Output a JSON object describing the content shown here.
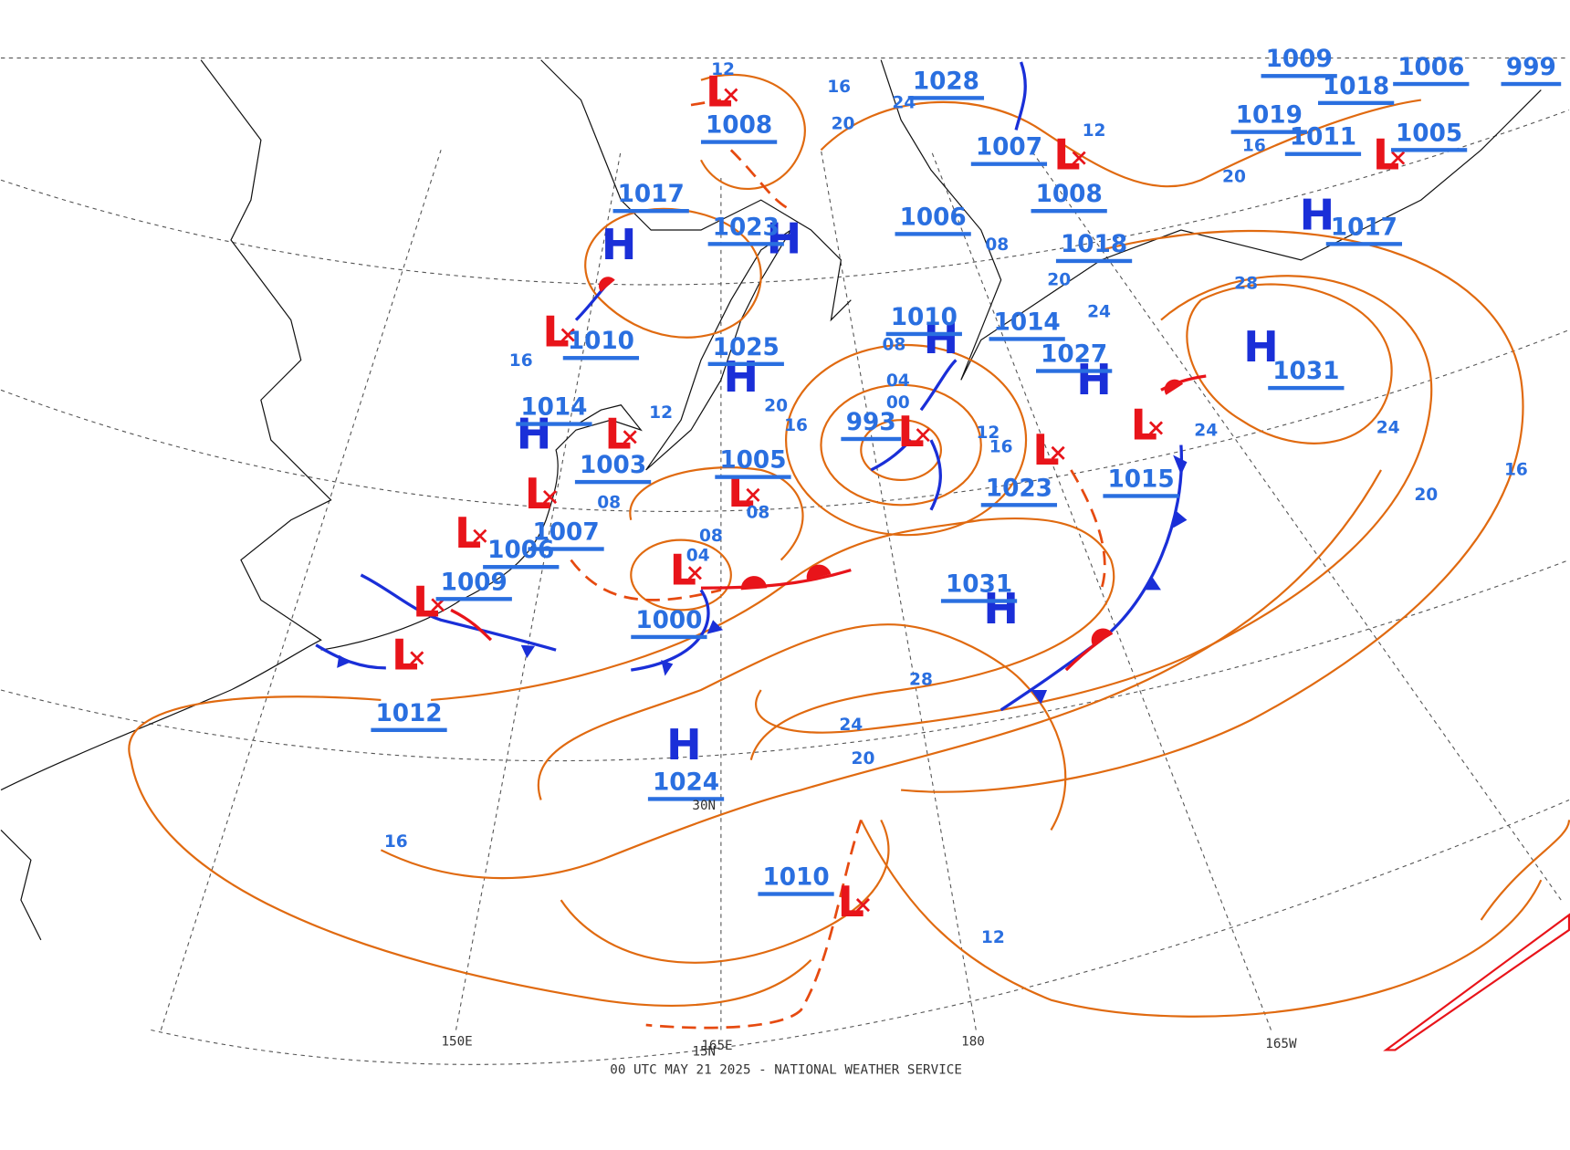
{
  "highs": [
    {
      "symbol": "H",
      "pressure": "1017"
    },
    {
      "symbol": "H",
      "pressure": "1023"
    },
    {
      "symbol": "H",
      "pressure": "1025"
    },
    {
      "symbol": "H",
      "pressure": "1014"
    },
    {
      "symbol": "H",
      "pressure": "1031"
    },
    {
      "symbol": "H",
      "pressure": "1024"
    },
    {
      "symbol": "H",
      "pressure": "1027"
    },
    {
      "symbol": "H",
      "pressure": "1031"
    },
    {
      "symbol": "H",
      "pressure": "1017"
    },
    {
      "symbol": "H",
      "pressure": "1010"
    }
  ],
  "lows": [
    {
      "symbol": "L",
      "pressure": "1008"
    },
    {
      "symbol": "L",
      "pressure": "1010"
    },
    {
      "symbol": "L",
      "pressure": "1003"
    },
    {
      "symbol": "L",
      "pressure": "1007"
    },
    {
      "symbol": "L",
      "pressure": "1006"
    },
    {
      "symbol": "L",
      "pressure": "1009"
    },
    {
      "symbol": "L",
      "pressure": "1012"
    },
    {
      "symbol": "L",
      "pressure": "1000"
    },
    {
      "symbol": "L",
      "pressure": "1005"
    },
    {
      "symbol": "L",
      "pressure": "993"
    },
    {
      "symbol": "L",
      "pressure": "1023"
    },
    {
      "symbol": "L",
      "pressure": "1015"
    },
    {
      "symbol": "L",
      "pressure": "1010"
    },
    {
      "symbol": "L",
      "pressure": "1007"
    },
    {
      "symbol": "L",
      "pressure": "1005"
    }
  ],
  "other_pressures": [
    "1028",
    "1006",
    "1018",
    "1014",
    "1019",
    "1011",
    "1018",
    "1006",
    "999",
    "1009",
    "1008"
  ],
  "isobar_labels": [
    "16",
    "20",
    "24",
    "12",
    "16",
    "20",
    "28",
    "24",
    "20",
    "16",
    "12",
    "20",
    "16",
    "12",
    "16",
    "24",
    "24",
    "16",
    "20",
    "28",
    "24",
    "20",
    "16",
    "12",
    "08",
    "08",
    "04",
    "08",
    "08",
    "04",
    "00",
    "08",
    "12"
  ],
  "longitude_labels": [
    "150E",
    "165E",
    "180",
    "165W"
  ],
  "latitude_labels": [
    "30N",
    "15N"
  ],
  "footer": "00 UTC MAY 21 2025 - NATIONAL WEATHER SERVICE"
}
